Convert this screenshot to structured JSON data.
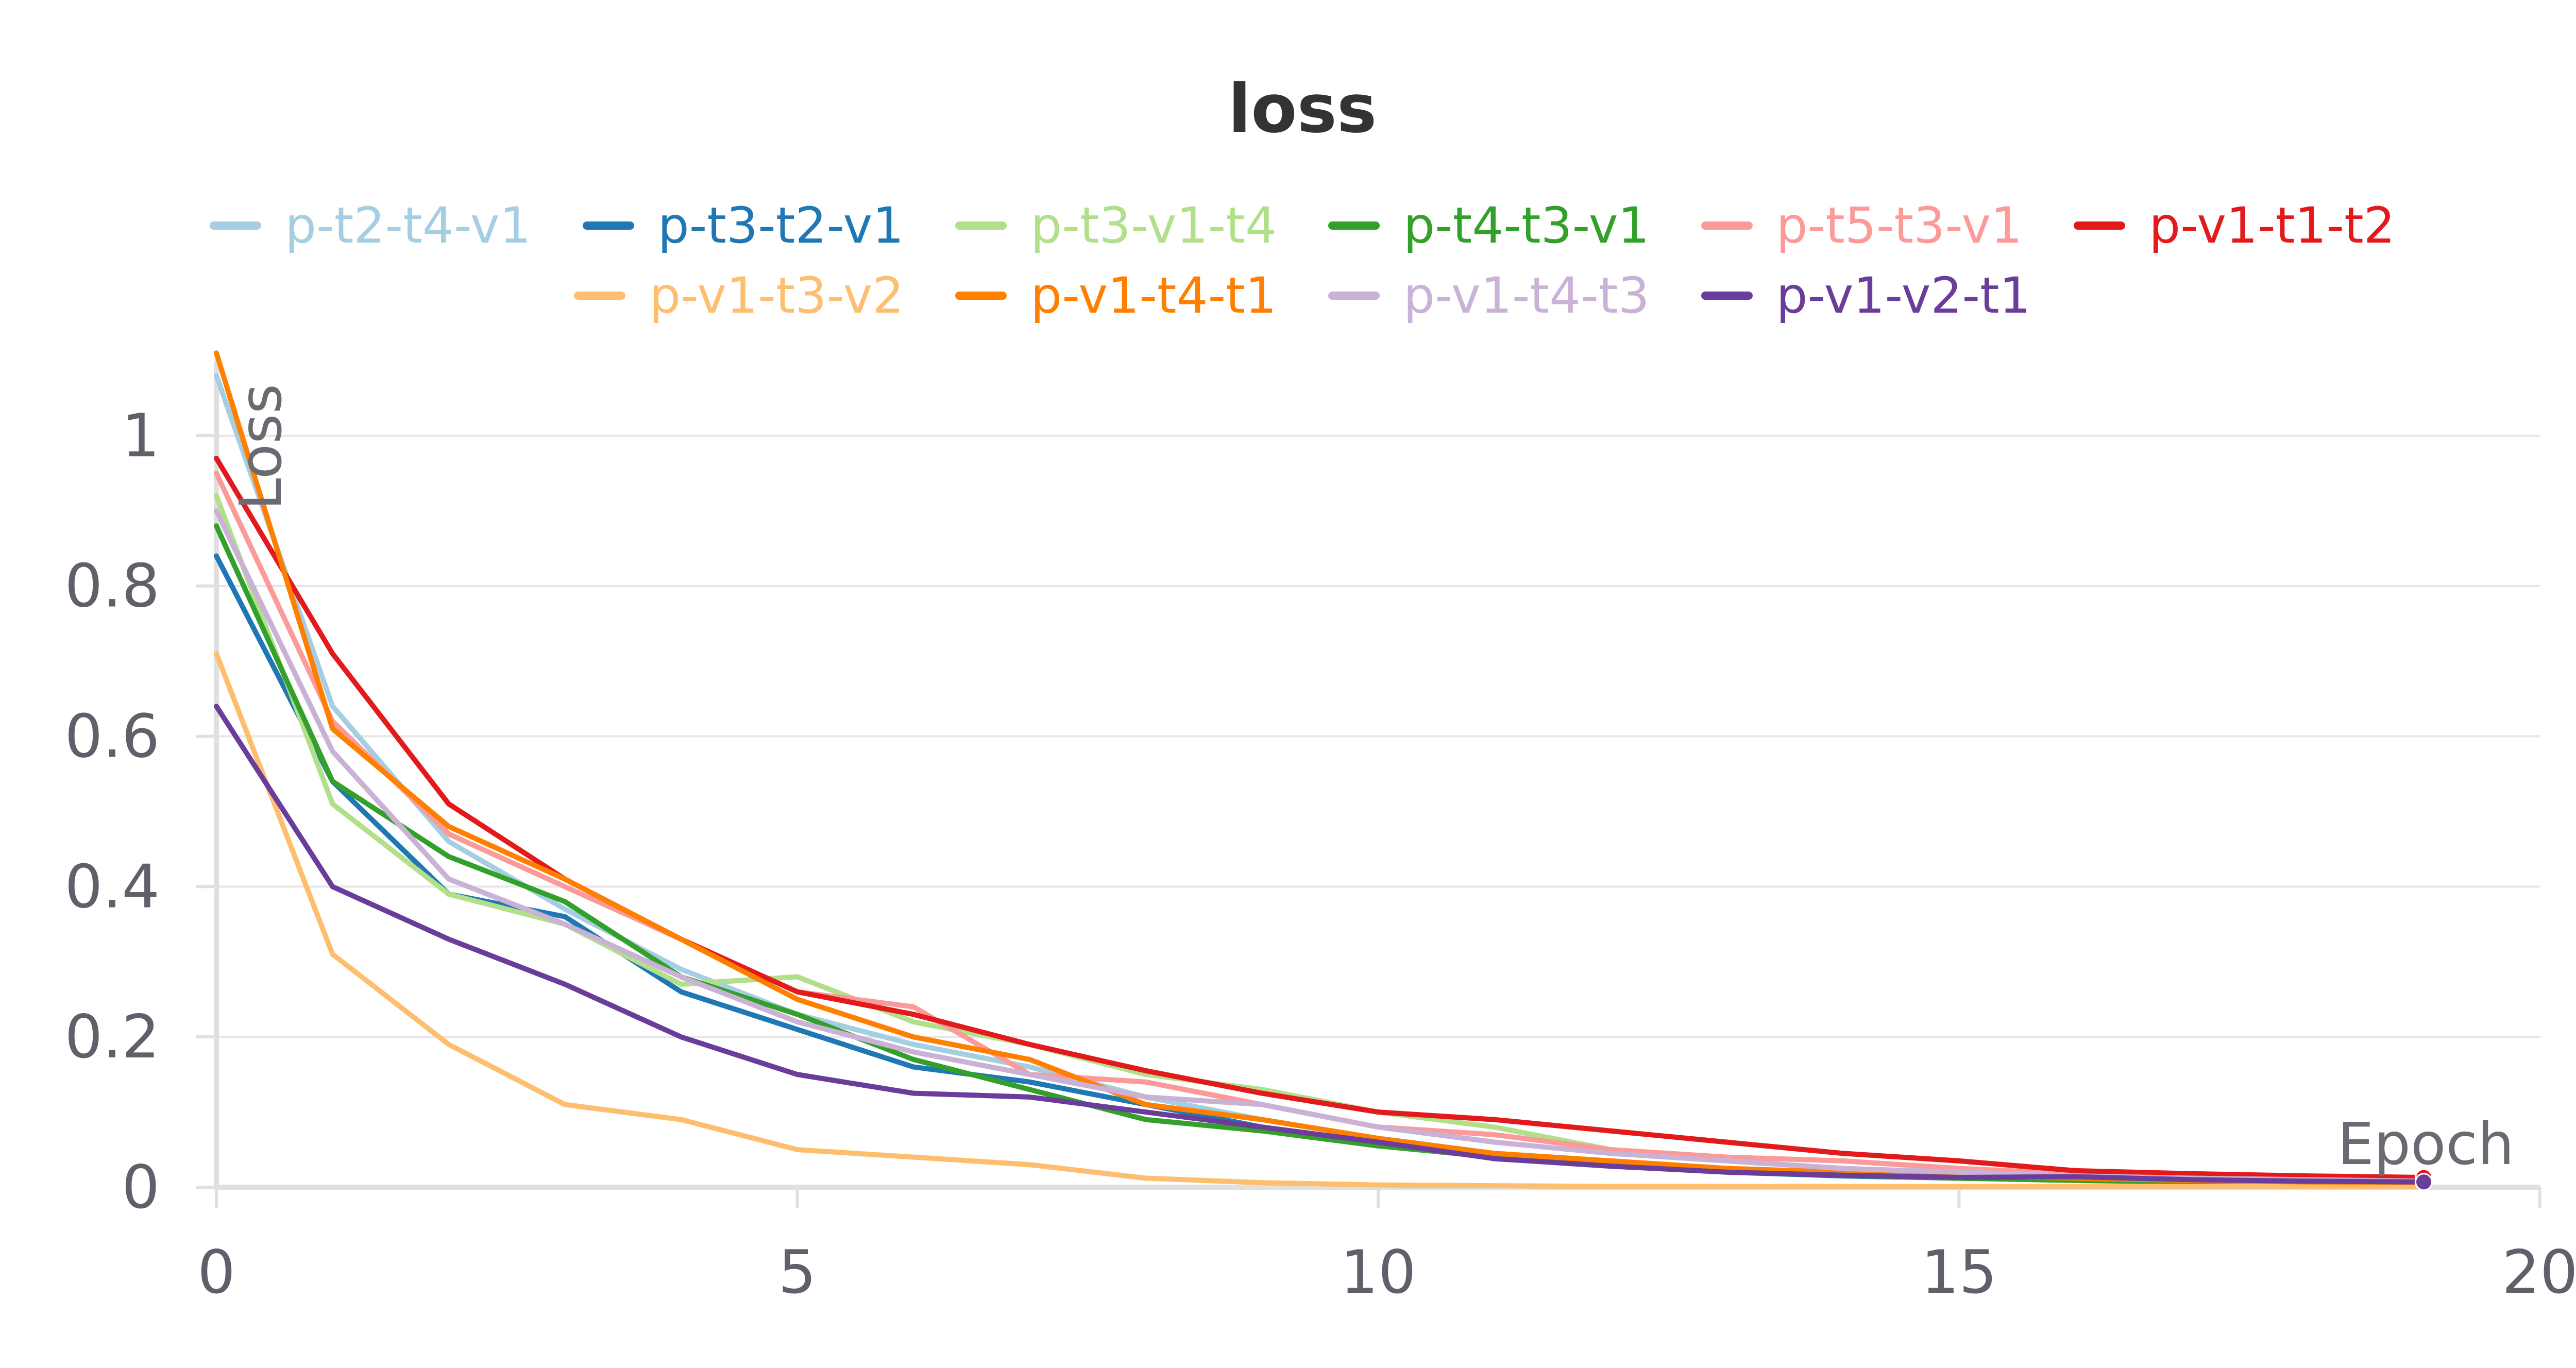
{
  "chart_data": {
    "type": "line",
    "title": "loss",
    "xlabel": "Epoch",
    "ylabel": "Loss",
    "xlim": [
      0,
      20
    ],
    "ylim": [
      0,
      1.1
    ],
    "xticks": [
      "0",
      "5",
      "10",
      "15",
      "20"
    ],
    "yticks": [
      "0",
      "0.2",
      "0.4",
      "0.6",
      "0.8",
      "1"
    ],
    "grid": true,
    "legend_position": "top",
    "x": [
      0,
      1,
      2,
      3,
      4,
      5,
      6,
      7,
      8,
      9,
      10,
      11,
      12,
      13,
      14,
      15,
      16,
      17,
      18,
      19
    ],
    "series": [
      {
        "name": "p-t2-t4-v1",
        "color": "#a6cee3",
        "values": [
          1.08,
          0.64,
          0.46,
          0.37,
          0.29,
          0.23,
          0.19,
          0.16,
          0.12,
          0.09,
          0.065,
          0.045,
          0.032,
          0.024,
          0.018,
          0.014,
          0.011,
          0.009,
          0.007,
          0.006
        ]
      },
      {
        "name": "p-t3-t2-v1",
        "color": "#1f78b4",
        "values": [
          0.84,
          0.54,
          0.39,
          0.36,
          0.26,
          0.21,
          0.16,
          0.14,
          0.11,
          0.08,
          0.06,
          0.04,
          0.03,
          0.02,
          0.015,
          0.012,
          0.01,
          0.008,
          0.007,
          0.006
        ]
      },
      {
        "name": "p-t3-v1-t4",
        "color": "#b2df8a",
        "values": [
          0.92,
          0.51,
          0.39,
          0.35,
          0.27,
          0.28,
          0.22,
          0.19,
          0.15,
          0.13,
          0.1,
          0.08,
          0.05,
          0.035,
          0.025,
          0.018,
          0.013,
          0.01,
          0.008,
          0.006
        ]
      },
      {
        "name": "p-t4-t3-v1",
        "color": "#33a02c",
        "values": [
          0.88,
          0.54,
          0.44,
          0.38,
          0.28,
          0.23,
          0.17,
          0.13,
          0.09,
          0.075,
          0.055,
          0.04,
          0.03,
          0.022,
          0.016,
          0.012,
          0.009,
          0.007,
          0.006,
          0.005
        ]
      },
      {
        "name": "p-t5-t3-v1",
        "color": "#fb9a99",
        "values": [
          0.95,
          0.62,
          0.47,
          0.4,
          0.33,
          0.26,
          0.24,
          0.15,
          0.14,
          0.11,
          0.08,
          0.07,
          0.05,
          0.04,
          0.035,
          0.025,
          0.018,
          0.013,
          0.01,
          0.008
        ]
      },
      {
        "name": "p-v1-t1-t2",
        "color": "#e31a1c",
        "values": [
          0.97,
          0.71,
          0.51,
          0.41,
          0.33,
          0.26,
          0.23,
          0.19,
          0.155,
          0.125,
          0.1,
          0.09,
          0.075,
          0.06,
          0.045,
          0.035,
          0.022,
          0.018,
          0.015,
          0.013
        ]
      },
      {
        "name": "p-v1-t3-v2",
        "color": "#fdbf6f",
        "values": [
          0.71,
          0.31,
          0.19,
          0.11,
          0.09,
          0.05,
          0.04,
          0.03,
          0.012,
          0.006,
          0.003,
          0.002,
          0.001,
          0.001,
          0.001,
          0.001,
          0.001,
          0.001,
          0.001,
          0.001
        ]
      },
      {
        "name": "p-v1-t4-t1",
        "color": "#ff7f00",
        "values": [
          1.11,
          0.61,
          0.48,
          0.41,
          0.33,
          0.25,
          0.2,
          0.17,
          0.11,
          0.09,
          0.065,
          0.045,
          0.035,
          0.025,
          0.02,
          0.015,
          0.012,
          0.009,
          0.007,
          0.006
        ]
      },
      {
        "name": "p-v1-t4-t3",
        "color": "#cab2d6",
        "values": [
          0.9,
          0.58,
          0.41,
          0.35,
          0.28,
          0.22,
          0.18,
          0.15,
          0.12,
          0.11,
          0.08,
          0.06,
          0.045,
          0.035,
          0.025,
          0.02,
          0.015,
          0.012,
          0.01,
          0.008
        ]
      },
      {
        "name": "p-v1-v2-t1",
        "color": "#6a3d9a",
        "values": [
          0.64,
          0.4,
          0.33,
          0.27,
          0.2,
          0.15,
          0.125,
          0.12,
          0.1,
          0.08,
          0.06,
          0.038,
          0.028,
          0.02,
          0.016,
          0.013,
          0.014,
          0.01,
          0.008,
          0.007
        ]
      }
    ]
  }
}
